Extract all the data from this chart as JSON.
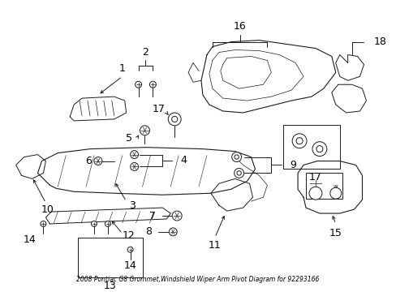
{
  "title": "2008 Pontiac G8 Grommet,Windshield Wiper Arm Pivot Diagram for 92293166",
  "bg_color": "#ffffff",
  "fig_width": 4.89,
  "fig_height": 3.6,
  "dpi": 100,
  "lc": "#1a1a1a",
  "lw": 0.7
}
